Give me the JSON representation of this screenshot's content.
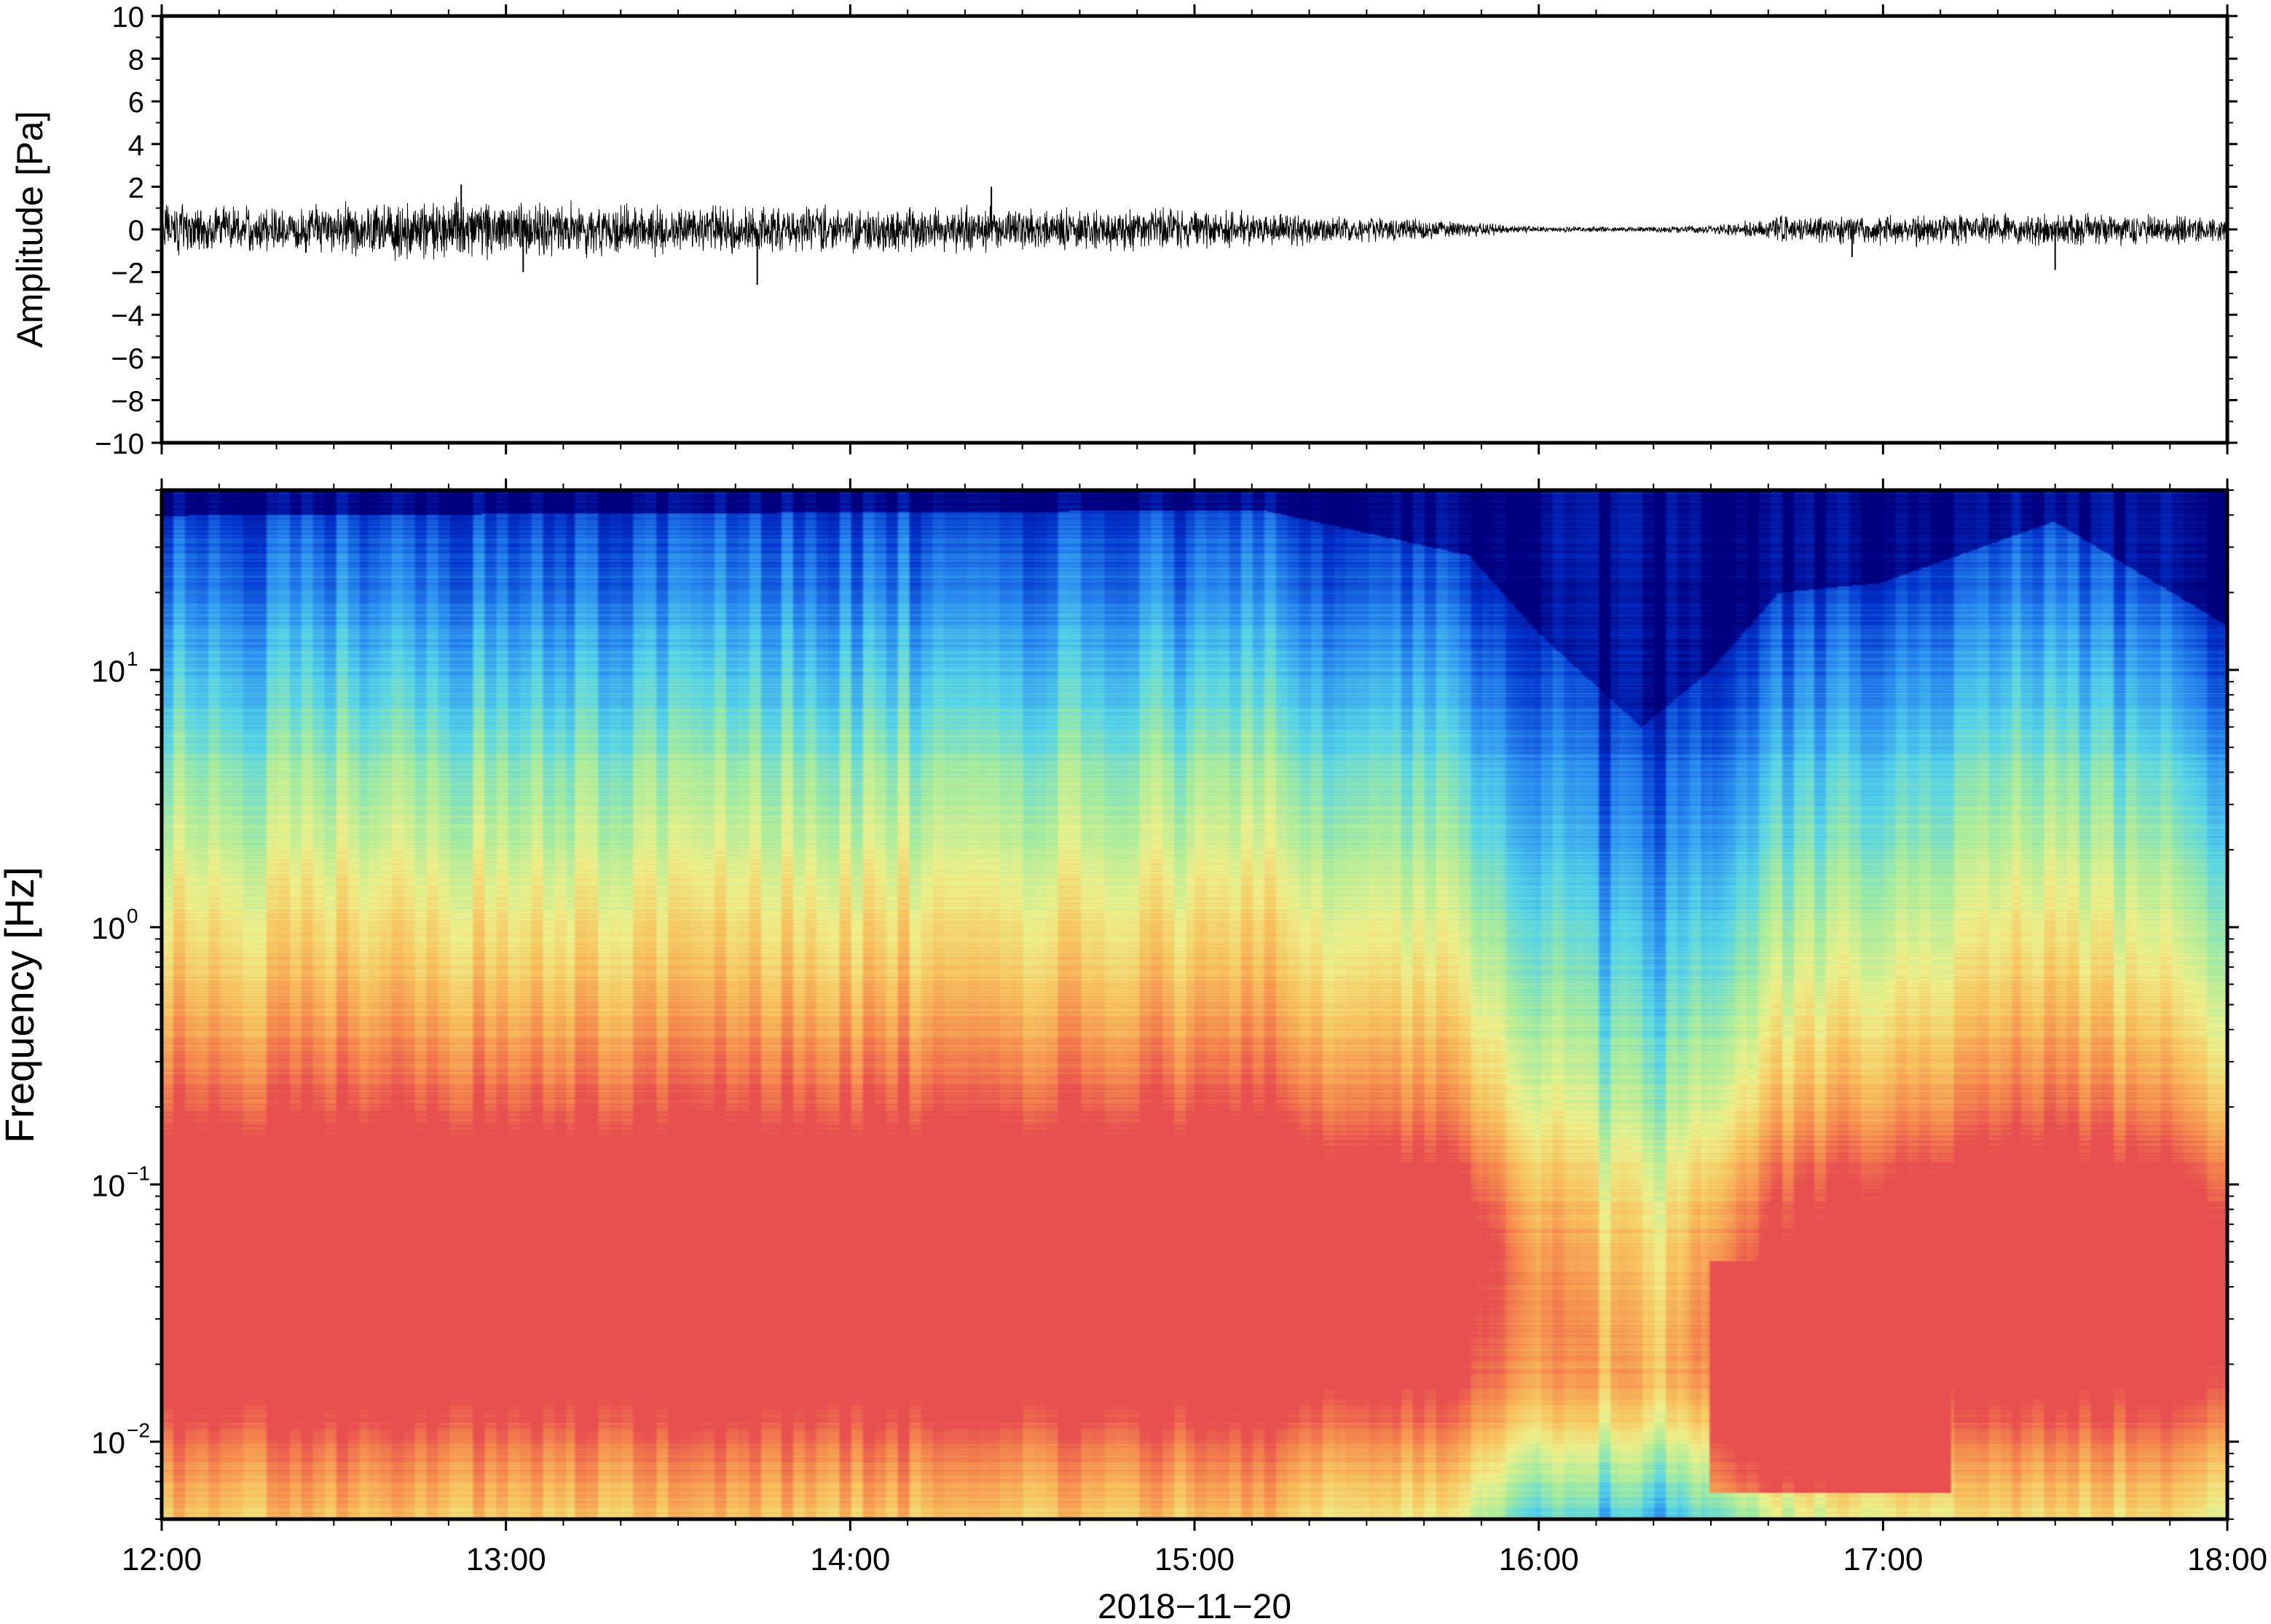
{
  "chart_data": [
    {
      "type": "line",
      "title": "",
      "ylabel": "Amplitude [Pa]",
      "ylim": [
        -10,
        10
      ],
      "yticks": [
        "10",
        "8",
        "6",
        "4",
        "2",
        "0",
        "−2",
        "−4",
        "−6",
        "−8",
        "−10"
      ],
      "ytick_values": [
        10,
        8,
        6,
        4,
        2,
        0,
        -2,
        -4,
        -6,
        -8,
        -10
      ],
      "x_range": [
        "12:00",
        "18:00"
      ],
      "series": [
        {
          "description": "infrasound pressure trace",
          "envelope_hours": [
            12.0,
            12.5,
            12.8,
            13.0,
            13.5,
            14.0,
            14.4,
            14.5,
            15.0,
            15.5,
            15.8,
            16.0,
            16.3,
            16.5,
            16.7,
            17.0,
            17.5,
            18.0
          ],
          "envelope_amplitude": [
            1.3,
            1.4,
            1.6,
            1.5,
            1.3,
            1.2,
            1.2,
            1.1,
            1.1,
            0.7,
            0.4,
            0.15,
            0.15,
            0.2,
            0.7,
            0.8,
            0.9,
            0.7
          ],
          "spikes": [
            {
              "hour": 12.87,
              "value": 2.1
            },
            {
              "hour": 13.05,
              "value": -2.0
            },
            {
              "hour": 13.73,
              "value": -2.6
            },
            {
              "hour": 14.41,
              "value": 2.0
            },
            {
              "hour": 16.91,
              "value": -1.3
            },
            {
              "hour": 17.5,
              "value": -1.9
            }
          ]
        }
      ]
    },
    {
      "type": "heatmap",
      "title": "",
      "ylabel": "Frequency [Hz]",
      "yscale": "log",
      "ylim_hz": [
        0.005,
        50
      ],
      "yticks": [
        {
          "label": "10",
          "exponent": "1",
          "value": 10
        },
        {
          "label": "10",
          "exponent": "0",
          "value": 1
        },
        {
          "label": "10",
          "exponent": "−1",
          "value": 0.1
        },
        {
          "label": "10",
          "exponent": "−2",
          "value": 0.01
        }
      ],
      "xlabel": "2018−11−20",
      "xticks": [
        "12:00",
        "13:00",
        "14:00",
        "15:00",
        "16:00",
        "17:00",
        "18:00"
      ],
      "colormap": "rainbow (blue = low power, red = high power)",
      "colors": [
        "#00007f",
        "#0033cc",
        "#2a8cf0",
        "#55d4e8",
        "#a6ec9e",
        "#eef08a",
        "#f7c25e",
        "#f5894e",
        "#e84f4f"
      ],
      "dark_blue_top_edge_hz": [
        {
          "hour": 12.0,
          "value": 40
        },
        {
          "hour": 15.2,
          "value": 42
        },
        {
          "hour": 15.8,
          "value": 28
        },
        {
          "hour": 16.0,
          "value": 14
        },
        {
          "hour": 16.3,
          "value": 6
        },
        {
          "hour": 16.5,
          "value": 10
        },
        {
          "hour": 16.7,
          "value": 20
        },
        {
          "hour": 17.0,
          "value": 22
        },
        {
          "hour": 17.5,
          "value": 38
        },
        {
          "hour": 18.0,
          "value": 15
        }
      ],
      "high_power_band_hz": [
        0.02,
        0.3
      ]
    }
  ]
}
